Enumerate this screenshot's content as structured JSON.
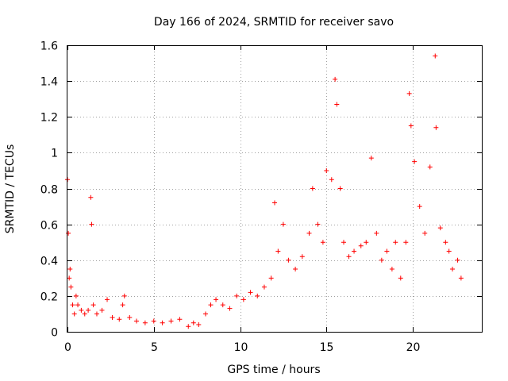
{
  "chart_data": {
    "type": "scatter",
    "title": "Day 166 of 2024, SRMTID for receiver savo",
    "xlabel": "GPS time / hours",
    "ylabel": "SRMTID / TECUs",
    "xlim": [
      0,
      24
    ],
    "ylim": [
      0,
      1.6
    ],
    "xticks": [
      0,
      5,
      10,
      15,
      20
    ],
    "xtick_labels": [
      "0",
      "5",
      "10",
      "15",
      "20"
    ],
    "yticks": [
      0,
      0.2,
      0.4,
      0.6,
      0.8,
      1.0,
      1.2,
      1.4,
      1.6
    ],
    "ytick_labels": [
      "0",
      "0.2",
      "0.4",
      "0.6",
      "0.8",
      "1",
      "1.2",
      "1.4",
      "1.6"
    ],
    "grid": true,
    "marker": "+",
    "series": [
      {
        "name": "SRMTID",
        "color": "#ff0000",
        "x": [
          0.0,
          0.05,
          0.1,
          0.15,
          0.2,
          0.3,
          0.4,
          0.5,
          0.6,
          0.8,
          1.0,
          1.2,
          1.35,
          1.4,
          1.5,
          1.7,
          2.0,
          2.3,
          2.6,
          3.0,
          3.2,
          3.3,
          3.6,
          4.0,
          4.5,
          5.0,
          5.5,
          6.0,
          6.5,
          7.0,
          7.3,
          7.6,
          8.0,
          8.3,
          8.6,
          9.0,
          9.4,
          9.8,
          10.2,
          10.6,
          11.0,
          11.4,
          11.8,
          12.0,
          12.2,
          12.5,
          12.8,
          13.2,
          13.6,
          14.0,
          14.2,
          14.5,
          14.8,
          15.0,
          15.3,
          15.5,
          15.6,
          15.8,
          16.0,
          16.3,
          16.6,
          17.0,
          17.3,
          17.6,
          17.9,
          18.2,
          18.5,
          18.8,
          19.0,
          19.3,
          19.6,
          19.8,
          19.9,
          20.1,
          20.4,
          20.7,
          21.0,
          21.3,
          21.35,
          21.6,
          21.9,
          22.1,
          22.3,
          22.6,
          22.8
        ],
        "y": [
          0.85,
          0.55,
          0.3,
          0.35,
          0.25,
          0.15,
          0.1,
          0.2,
          0.15,
          0.12,
          0.1,
          0.12,
          0.75,
          0.6,
          0.15,
          0.1,
          0.12,
          0.18,
          0.08,
          0.07,
          0.15,
          0.2,
          0.08,
          0.06,
          0.05,
          0.06,
          0.05,
          0.06,
          0.07,
          0.03,
          0.05,
          0.04,
          0.1,
          0.15,
          0.18,
          0.15,
          0.13,
          0.2,
          0.18,
          0.22,
          0.2,
          0.25,
          0.3,
          0.72,
          0.45,
          0.6,
          0.4,
          0.35,
          0.42,
          0.55,
          0.8,
          0.6,
          0.5,
          0.9,
          0.85,
          1.41,
          1.27,
          0.8,
          0.5,
          0.42,
          0.45,
          0.48,
          0.5,
          0.97,
          0.55,
          0.4,
          0.45,
          0.35,
          0.5,
          0.3,
          0.5,
          1.33,
          1.15,
          0.95,
          0.7,
          0.55,
          0.92,
          1.54,
          1.14,
          0.58,
          0.5,
          0.45,
          0.35,
          0.4,
          0.3
        ]
      }
    ]
  }
}
